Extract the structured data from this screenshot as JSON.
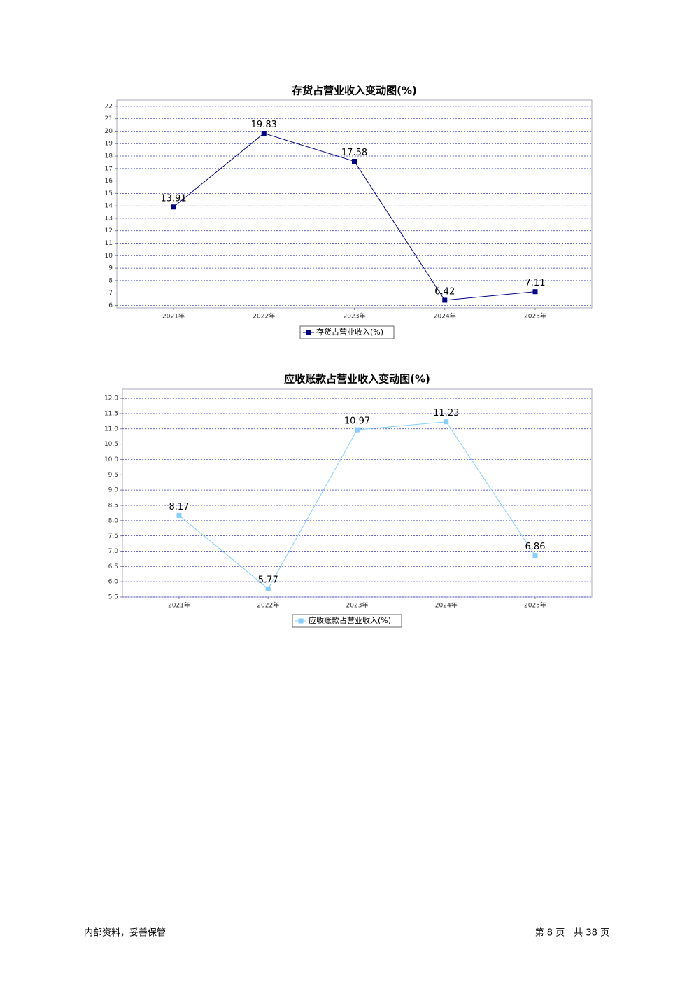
{
  "chart_data": [
    {
      "type": "line",
      "title": "存货占营业收入变动图(%)",
      "categories": [
        "2021年",
        "2022年",
        "2023年",
        "2024年",
        "2025年"
      ],
      "series": [
        {
          "name": "存货占营业收入(%)",
          "color": "#000080",
          "values": [
            13.91,
            19.83,
            17.58,
            6.42,
            7.11
          ]
        }
      ],
      "ylim": [
        5.8,
        22.5
      ],
      "yticks": [
        6,
        7,
        8,
        9,
        10,
        11,
        12,
        13,
        14,
        15,
        16,
        17,
        18,
        19,
        20,
        21,
        22
      ],
      "grid": true
    },
    {
      "type": "line",
      "title": "应收账款占营业收入变动图(%)",
      "categories": [
        "2021年",
        "2022年",
        "2023年",
        "2024年",
        "2025年"
      ],
      "series": [
        {
          "name": "应收账款占营业收入(%)",
          "color": "#87cefa",
          "values": [
            8.17,
            5.77,
            10.97,
            11.23,
            6.86
          ]
        }
      ],
      "ylim": [
        5.5,
        12.3
      ],
      "yticks": [
        5.5,
        {
          "value": 6,
          "label": "6.0"
        },
        6.5,
        {
          "value": 7,
          "label": "7.0"
        },
        7.5,
        {
          "value": 8,
          "label": "8.0"
        },
        8.5,
        {
          "value": 9,
          "label": "9.0"
        },
        9.5,
        {
          "value": 10,
          "label": "10.0"
        },
        10.5,
        {
          "value": 11,
          "label": "11.0"
        },
        11.5,
        {
          "value": 12,
          "label": "12.0"
        }
      ],
      "grid": true
    }
  ],
  "footer": {
    "note": "内部资料，妥善保管",
    "page": "第 8 页　共 38 页"
  }
}
